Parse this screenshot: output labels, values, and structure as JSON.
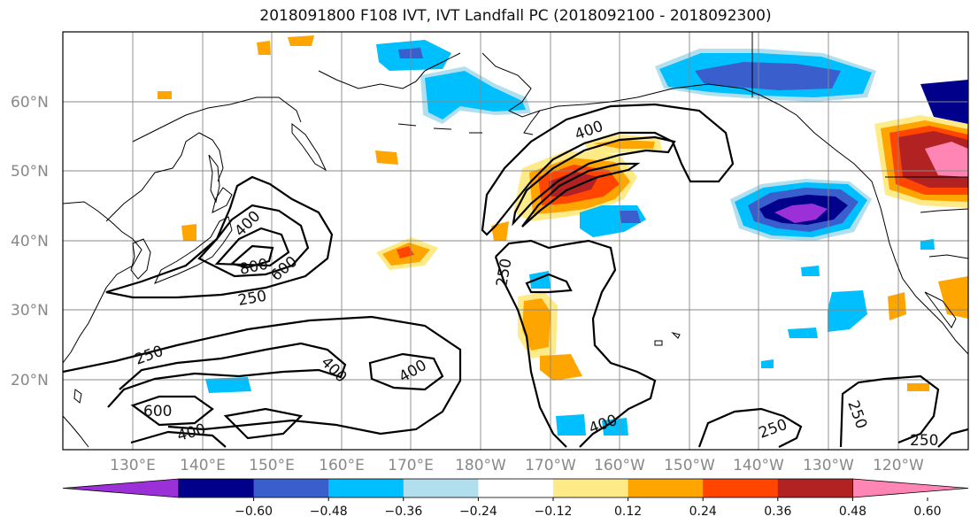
{
  "title": "2018091800 F108 IVT, IVT Landfall PC (2018092100 - 2018092300)",
  "axes": {
    "lon_ticks": [
      "130°E",
      "140°E",
      "150°E",
      "160°E",
      "170°E",
      "180°W",
      "170°W",
      "160°W",
      "150°W",
      "140°W",
      "130°W",
      "120°W"
    ],
    "lat_ticks": [
      "60°N",
      "50°N",
      "40°N",
      "30°N",
      "20°N"
    ],
    "extent": {
      "lon_west": 120,
      "lon_east": 250,
      "lat_south": 10,
      "lat_north": 70
    }
  },
  "colorbar": {
    "ticks": [
      "−0.60",
      "−0.48",
      "−0.36",
      "−0.24",
      "−0.12",
      "0.12",
      "0.24",
      "0.36",
      "0.48",
      "0.60"
    ],
    "colors": [
      "#9b30d8",
      "#00008b",
      "#3a5fcd",
      "#00bfff",
      "#b2dfee",
      "#ffffff",
      "#ffea88",
      "#ffa500",
      "#ff4500",
      "#b22222",
      "#ff86b4"
    ],
    "extend": "both"
  },
  "contour_labels": [
    "400",
    "800",
    "600",
    "250",
    "250",
    "400",
    "400",
    "600",
    "400",
    "250",
    "400",
    "400",
    "250",
    "250",
    "250"
  ],
  "contour_levels": [
    250,
    400,
    600,
    800
  ],
  "colors": {
    "contour": "#000000",
    "grid": "#888888",
    "coast": "#000000"
  }
}
